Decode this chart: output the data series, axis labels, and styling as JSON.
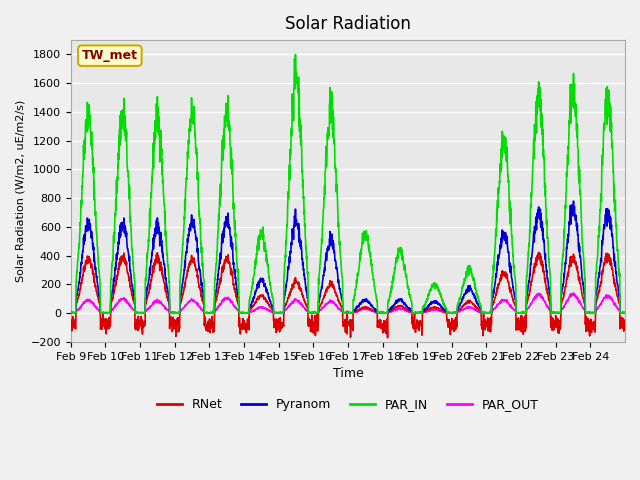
{
  "title": "Solar Radiation",
  "ylabel": "Solar Radiation (W/m2, uE/m2/s)",
  "xlabel": "Time",
  "station_label": "TW_met",
  "ylim": [
    -200,
    1900
  ],
  "yticks": [
    -200,
    0,
    200,
    400,
    600,
    800,
    1000,
    1200,
    1400,
    1600,
    1800
  ],
  "x_tick_labels": [
    "Feb 9",
    "Feb 10",
    "Feb 11",
    "Feb 12",
    "Feb 13",
    "Feb 14",
    "Feb 15",
    "Feb 16",
    "Feb 17",
    "Feb 18",
    "Feb 19",
    "Feb 20",
    "Feb 21",
    "Feb 22",
    "Feb 23",
    "Feb 24"
  ],
  "x_tick_positions": [
    0,
    1,
    2,
    3,
    4,
    5,
    6,
    7,
    8,
    9,
    10,
    11,
    12,
    13,
    14,
    15
  ],
  "series": {
    "RNet": {
      "color": "#dd0000",
      "linewidth": 1.2
    },
    "Pyranom": {
      "color": "#0000dd",
      "linewidth": 1.2
    },
    "PAR_IN": {
      "color": "#00dd00",
      "linewidth": 1.2
    },
    "PAR_OUT": {
      "color": "#ff00ff",
      "linewidth": 1.2
    }
  },
  "bg_color": "#f0f0f0",
  "plot_bg_color": "#e8e8e8",
  "grid_color": "#ffffff",
  "n_days": 16,
  "par_in_peaks": [
    1400,
    1390,
    1360,
    1400,
    1410,
    550,
    1670,
    1390,
    540,
    430,
    200,
    300,
    1200,
    1520,
    1540,
    1510
  ],
  "pyranom_peaks": [
    630,
    620,
    600,
    640,
    650,
    230,
    640,
    500,
    90,
    90,
    80,
    170,
    550,
    700,
    725,
    700
  ],
  "rnet_peaks": [
    380,
    390,
    380,
    375,
    380,
    120,
    220,
    200,
    40,
    50,
    40,
    80,
    280,
    400,
    380,
    400
  ],
  "par_out_peaks": [
    90,
    100,
    85,
    90,
    105,
    40,
    90,
    80,
    30,
    30,
    25,
    40,
    90,
    130,
    130,
    120
  ]
}
